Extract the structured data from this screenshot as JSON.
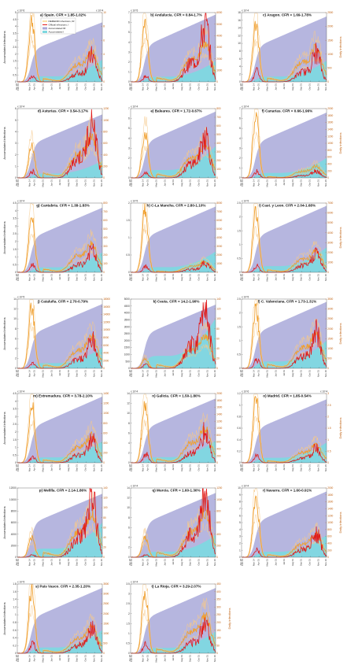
{
  "figure": {
    "left_axis_label": "Accumulated infections",
    "right_axis_label": "Daily infections",
    "legend": [
      {
        "label": "REMEDID infections, IR",
        "color": "#f5c24e"
      },
      {
        "label": "Official infections, I",
        "color": "#e01b1b"
      },
      {
        "label": "Accumulated IR",
        "color": "#a9a9d9"
      },
      {
        "label": "Accumulated I",
        "color": "#7fd8e0"
      }
    ]
  },
  "x_ticks": [
    "Jan 28",
    "Feb 01",
    "Mar 14",
    "Apr 01",
    "May 01",
    "Jun 01",
    "Jul 01",
    "Aug 01",
    "Sep 01",
    "Oct 01",
    "Nov 01",
    "Nov 29"
  ],
  "colors": {
    "accum_remedid": "#a9a9d9",
    "accum_official": "#7fd8e0",
    "daily_remedid": "#f0a030",
    "daily_remedid_bounds": "#f7c98a",
    "daily_official": "#e01b1b",
    "left_axis": "#222222",
    "right_axis": "#c06010"
  },
  "chart_data": [
    {
      "type": "area",
      "title": "a) Spain. CFR = 1.85-1.02%",
      "left_exponent": "x 10^6",
      "right_exponent": "x 10^4",
      "left_ylim": [
        0,
        5
      ],
      "left_ticks": [
        "0",
        "0.5",
        "1",
        "1.5",
        "2",
        "2.5",
        "3",
        "3.5",
        "4",
        "4.5",
        "5"
      ],
      "right_ylim": [
        0,
        10
      ],
      "right_ticks": [
        "0",
        "2",
        "4",
        "6",
        "8",
        "10"
      ],
      "accum_remedid_final": 4.3,
      "accum_official_final": 1.6,
      "remedid_first_peak": 9.0,
      "remedid_second_peak": 3.9,
      "official_first_peak": 0.85,
      "official_second_peak": 3.6
    },
    {
      "type": "area",
      "title": "b) Andalucia. CFR = 0.84-1.7%",
      "left_exponent": "x 10^5",
      "left_ylim": [
        0,
        7
      ],
      "left_ticks": [
        "0",
        "1",
        "2",
        "3",
        "4",
        "5",
        "6",
        "7"
      ],
      "right_ylim": [
        0,
        6000
      ],
      "right_ticks": [
        "0",
        "1000",
        "2000",
        "3000",
        "4000",
        "5000",
        "6000"
      ],
      "accum_remedid_final": 6.8,
      "accum_official_final": 2.1,
      "remedid_first_peak": 5200,
      "remedid_second_peak": 3000,
      "official_first_peak": 500,
      "official_second_peak": 4700
    },
    {
      "type": "area",
      "title": "c) Aragon. CFR = 1.69-1.78%",
      "left_exponent": "x 10^4",
      "left_ylim": [
        0,
        18
      ],
      "left_ticks": [
        "0",
        "2",
        "4",
        "6",
        "8",
        "10",
        "12",
        "14",
        "16",
        "18"
      ],
      "right_ylim": [
        0,
        2500
      ],
      "right_ticks": [
        "0",
        "500",
        "1000",
        "1500",
        "2000",
        "2500"
      ],
      "accum_remedid_final": 17,
      "accum_official_final": 5.5,
      "remedid_first_peak": 2100,
      "remedid_second_peak": 1100,
      "official_first_peak": 380,
      "official_second_peak": 1000
    },
    {
      "type": "area",
      "title": "d) Asturias. CFR = 3.54-3.17%",
      "left_exponent": "x 10^4",
      "left_ylim": [
        0,
        6
      ],
      "left_ticks": [
        "0",
        "1",
        "2",
        "3",
        "4",
        "5",
        "6"
      ],
      "right_ylim": [
        0,
        1200
      ],
      "right_ticks": [
        "0",
        "200",
        "400",
        "600",
        "800",
        "1000",
        "1200"
      ],
      "accum_remedid_final": 5.5,
      "accum_official_final": 1.5,
      "remedid_first_peak": 550,
      "remedid_second_peak": 650,
      "official_first_peak": 120,
      "official_second_peak": 1000
    },
    {
      "type": "area",
      "title": "e) Baleares. CFR = 1.72-0.67%",
      "left_exponent": "x 10^4",
      "left_ylim": [
        0,
        7
      ],
      "left_ticks": [
        "0",
        "1",
        "2",
        "3",
        "4",
        "5",
        "6",
        "7"
      ],
      "right_ylim": [
        0,
        800
      ],
      "right_ticks": [
        "0",
        "100",
        "200",
        "300",
        "400",
        "500",
        "600",
        "700",
        "800"
      ],
      "accum_remedid_final": 6.7,
      "accum_official_final": 3.2,
      "remedid_first_peak": 520,
      "remedid_second_peak": 350,
      "official_first_peak": 60,
      "official_second_peak": 480
    },
    {
      "type": "area",
      "title": "f) Canarias. CFR = 0.66-1.96%",
      "left_exponent": "x 10^4",
      "left_ylim": [
        0,
        7
      ],
      "left_ticks": [
        "0",
        "1",
        "2",
        "3",
        "4",
        "5",
        "6",
        "7"
      ],
      "right_ylim": [
        0,
        2000
      ],
      "right_ticks": [
        "0",
        "200",
        "400",
        "600",
        "800",
        "1000",
        "1200",
        "1400",
        "1600",
        "1800",
        "2000"
      ],
      "accum_remedid_final": 6.6,
      "accum_official_final": 2.0,
      "remedid_first_peak": 1800,
      "remedid_second_peak": 300,
      "official_first_peak": 180,
      "official_second_peak": 200
    },
    {
      "type": "area",
      "title": "g) Cantabria. CFR = 1.38-1.83%",
      "left_exponent": "x 10^4",
      "left_ylim": [
        0,
        4.5
      ],
      "left_ticks": [
        "0",
        "0.5",
        "1",
        "1.5",
        "2",
        "2.5",
        "3",
        "3.5",
        "4",
        "4.5"
      ],
      "right_ylim": [
        0,
        800
      ],
      "right_ticks": [
        "0",
        "100",
        "200",
        "300",
        "400",
        "500",
        "600",
        "700",
        "800"
      ],
      "accum_remedid_final": 4.2,
      "accum_official_final": 1.3,
      "remedid_first_peak": 620,
      "remedid_second_peak": 300,
      "official_first_peak": 90,
      "official_second_peak": 240
    },
    {
      "type": "area",
      "title": "h) C-La Mancha. CFR = 2.80-1.10%",
      "left_exponent": "x 10^5",
      "left_ylim": [
        0,
        2
      ],
      "left_ticks": [
        "0",
        "0.5",
        "1",
        "1.5",
        "2"
      ],
      "right_ylim": [
        0,
        8000
      ],
      "right_ticks": [
        "0",
        "1000",
        "2000",
        "3000",
        "4000",
        "5000",
        "6000",
        "7000",
        "8000"
      ],
      "accum_remedid_final": 1.9,
      "accum_official_final": 0.6,
      "remedid_first_peak": 7200,
      "remedid_second_peak": 1100,
      "official_first_peak": 700,
      "official_second_peak": 1000
    },
    {
      "type": "area",
      "title": "i) Cast. y Leon. CFR = 2.04-1.68%",
      "left_exponent": "x 10^5",
      "left_ylim": [
        0,
        2.5
      ],
      "left_ticks": [
        "0",
        "0.5",
        "1",
        "1.5",
        "2",
        "2.5"
      ],
      "right_ylim": [
        0,
        7000
      ],
      "right_ticks": [
        "0",
        "1000",
        "2000",
        "3000",
        "4000",
        "5000",
        "6000",
        "7000"
      ],
      "accum_remedid_final": 2.4,
      "accum_official_final": 0.9,
      "remedid_first_peak": 6200,
      "remedid_second_peak": 2000,
      "official_first_peak": 600,
      "official_second_peak": 1900
    },
    {
      "type": "area",
      "title": "j) Cataluña. CFR = 2.70-0.79%",
      "left_exponent": "x 10^5",
      "left_ylim": [
        0,
        14
      ],
      "left_ticks": [
        "0",
        "2",
        "4",
        "6",
        "8",
        "10",
        "12",
        "14"
      ],
      "right_ylim": [
        0,
        18000
      ],
      "right_ticks": [
        "0",
        "2000",
        "4000",
        "6000",
        "8000",
        "10000",
        "12000",
        "14000",
        "16000",
        "18000"
      ],
      "accum_remedid_final": 13,
      "accum_official_final": 4.2,
      "remedid_first_peak": 16000,
      "remedid_second_peak": 7500,
      "official_first_peak": 1500,
      "official_second_peak": 7000
    },
    {
      "type": "area",
      "title": "k) Ceuta. CFR = 14.2-1.90%",
      "left_exponent": "",
      "left_ylim": [
        0,
        5000
      ],
      "left_ticks": [
        "0",
        "500",
        "1000",
        "1500",
        "2000",
        "2500",
        "3000",
        "3500",
        "4000",
        "4500",
        "5000"
      ],
      "right_ylim": [
        0,
        140
      ],
      "right_ticks": [
        "0",
        "20",
        "40",
        "60",
        "80",
        "100",
        "120",
        "140"
      ],
      "accum_remedid_final": 4600,
      "accum_official_final": 3600,
      "remedid_first_peak": 20,
      "remedid_second_peak": 60,
      "official_first_peak": 8,
      "official_second_peak": 130
    },
    {
      "type": "area",
      "title": "l) C. Valenciana. CFR = 1.73-1.31%",
      "left_exponent": "x 10^5",
      "left_ylim": [
        0,
        2.5
      ],
      "left_ticks": [
        "0",
        "0.5",
        "1",
        "1.5",
        "2",
        "2.5"
      ],
      "right_ylim": [
        0,
        3500
      ],
      "right_ticks": [
        "0",
        "500",
        "1000",
        "1500",
        "2000",
        "2500",
        "3000",
        "3500"
      ],
      "accum_remedid_final": 2.4,
      "accum_official_final": 1.0,
      "remedid_first_peak": 3000,
      "remedid_second_peak": 1600,
      "official_first_peak": 450,
      "official_second_peak": 1700
    },
    {
      "type": "area",
      "title": "m) Extremadura. CFR = 3.78-2.10%",
      "left_exponent": "x 10^4",
      "left_ylim": [
        0,
        4.5
      ],
      "left_ticks": [
        "0",
        "0.5",
        "1",
        "1.5",
        "2",
        "2.5",
        "3",
        "3.5",
        "4",
        "4.5"
      ],
      "right_ylim": [
        0,
        1400
      ],
      "right_ticks": [
        "0",
        "200",
        "400",
        "600",
        "800",
        "1000",
        "1200",
        "1400"
      ],
      "accum_remedid_final": 4.3,
      "accum_official_final": 1.4,
      "remedid_first_peak": 1250,
      "remedid_second_peak": 500,
      "official_first_peak": 120,
      "official_second_peak": 450
    },
    {
      "type": "area",
      "title": "n) Galicia. CFR = 1.50-1.80%",
      "left_exponent": "x 10^4",
      "left_ylim": [
        0,
        14
      ],
      "left_ticks": [
        "0",
        "2",
        "4",
        "6",
        "8",
        "10",
        "12",
        "14"
      ],
      "right_ylim": [
        0,
        2000
      ],
      "right_ticks": [
        "0",
        "200",
        "400",
        "600",
        "800",
        "1000",
        "1200",
        "1400",
        "1600",
        "1800",
        "2000"
      ],
      "accum_remedid_final": 13,
      "accum_official_final": 4.5,
      "remedid_first_peak": 1700,
      "remedid_second_peak": 900,
      "official_first_peak": 250,
      "official_second_peak": 850
    },
    {
      "type": "area",
      "title": "o) Madrid. CFR = 1.85-0.54%",
      "left_exponent": "x 10^6",
      "left_ylim": [
        0,
        1.2
      ],
      "left_ticks": [
        "0",
        "0.2",
        "0.4",
        "0.6",
        "0.8",
        "1",
        "1.2"
      ],
      "right_exponent": "x 10^4",
      "right_ylim": [
        0,
        3
      ],
      "right_ticks": [
        "0",
        "0.5",
        "1",
        "1.5",
        "2",
        "2.5",
        "3"
      ],
      "accum_remedid_final": 1.1,
      "accum_official_final": 0.35,
      "remedid_first_peak": 2.8,
      "remedid_second_peak": 0.7,
      "official_first_peak": 0.3,
      "official_second_peak": 0.6
    },
    {
      "type": "area",
      "title": "p) Melilla. CFR = 2.14-1.86%",
      "left_exponent": "",
      "left_ylim": [
        0,
        12000
      ],
      "left_ticks": [
        "0",
        "2000",
        "4000",
        "6000",
        "8000",
        "10000",
        "12000"
      ],
      "right_ylim": [
        0,
        140
      ],
      "right_ticks": [
        "0",
        "20",
        "40",
        "60",
        "80",
        "100",
        "120",
        "140"
      ],
      "accum_remedid_final": 11000,
      "accum_official_final": 6000,
      "remedid_first_peak": 40,
      "remedid_second_peak": 80,
      "official_first_peak": 5,
      "official_second_peak": 120
    },
    {
      "type": "area",
      "title": "q) Murcia. CFR = 1.60-1.30%",
      "left_exponent": "x 10^4",
      "left_ylim": [
        0,
        14
      ],
      "left_ticks": [
        "0",
        "2",
        "4",
        "6",
        "8",
        "10",
        "12",
        "14"
      ],
      "right_ylim": [
        0,
        1200
      ],
      "right_ticks": [
        "0",
        "200",
        "400",
        "600",
        "800",
        "1000",
        "1200"
      ],
      "accum_remedid_final": 13,
      "accum_official_final": 4.5,
      "remedid_first_peak": 350,
      "remedid_second_peak": 700,
      "official_first_peak": 40,
      "official_second_peak": 1100
    },
    {
      "type": "area",
      "title": "r) Navarra. CFR = 1.60-0.91%",
      "left_exponent": "x 10^4",
      "left_ylim": [
        0,
        10
      ],
      "left_ticks": [
        "0",
        "1",
        "2",
        "3",
        "4",
        "5",
        "6",
        "7",
        "8",
        "9",
        "10"
      ],
      "right_ylim": [
        0,
        2000
      ],
      "right_ticks": [
        "0",
        "200",
        "400",
        "600",
        "800",
        "1000",
        "1200",
        "1400",
        "1600",
        "1800",
        "2000"
      ],
      "accum_remedid_final": 9.5,
      "accum_official_final": 3.2,
      "remedid_first_peak": 1700,
      "remedid_second_peak": 600,
      "official_first_peak": 200,
      "official_second_peak": 650
    },
    {
      "type": "area",
      "title": "s) Pais Vasco. CFR = 2.35-1.20%",
      "left_exponent": "x 10^5",
      "left_ylim": [
        0,
        1.8
      ],
      "left_ticks": [
        "0",
        "0.2",
        "0.4",
        "0.6",
        "0.8",
        "1",
        "1.2",
        "1.4",
        "1.6",
        "1.8"
      ],
      "right_ylim": [
        0,
        3500
      ],
      "right_ticks": [
        "0",
        "500",
        "1000",
        "1500",
        "2000",
        "2500",
        "3000",
        "3500"
      ],
      "accum_remedid_final": 1.7,
      "accum_official_final": 0.6,
      "remedid_first_peak": 3200,
      "remedid_second_peak": 1200,
      "official_first_peak": 500,
      "official_second_peak": 1200
    },
    {
      "type": "area",
      "title": "t) La Rioja. CFR = 3.29-2.07%",
      "left_exponent": "x 10^4",
      "left_ylim": [
        0,
        3.5
      ],
      "left_ticks": [
        "0",
        "0.5",
        "1",
        "1.5",
        "2",
        "2.5",
        "3",
        "3.5"
      ],
      "right_ylim": [
        0,
        450
      ],
      "right_ticks": [
        "0",
        "50",
        "100",
        "150",
        "200",
        "250",
        "300",
        "350",
        "400",
        "450"
      ],
      "accum_remedid_final": 3.3,
      "accum_official_final": 1.1,
      "remedid_first_peak": 400,
      "remedid_second_peak": 220,
      "official_first_peak": 70,
      "official_second_peak": 200
    }
  ]
}
